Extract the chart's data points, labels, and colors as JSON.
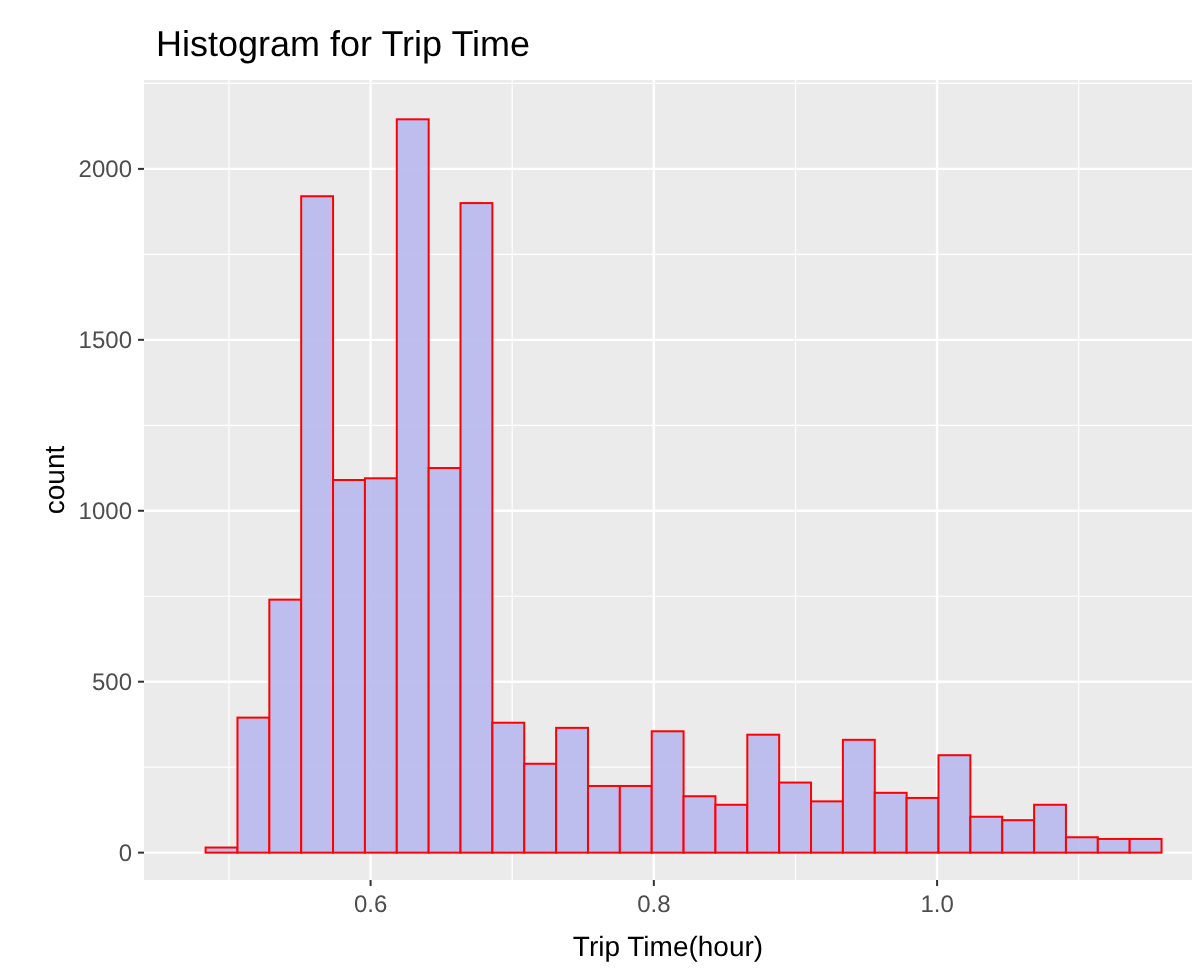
{
  "chart_data": {
    "type": "histogram",
    "title": "Histogram for Trip Time",
    "xlabel": "Trip Time(hour)",
    "ylabel": "count",
    "bins": [
      0.4835,
      0.506,
      0.5285,
      0.551,
      0.5735,
      0.596,
      0.6185,
      0.641,
      0.6635,
      0.686,
      0.7085,
      0.731,
      0.7535,
      0.776,
      0.7985,
      0.821,
      0.8435,
      0.866,
      0.8885,
      0.911,
      0.9335,
      0.956,
      0.9785,
      1.001,
      1.0235,
      1.046,
      1.0685,
      1.091,
      1.1135,
      1.136,
      1.1585
    ],
    "values": [
      15,
      395,
      740,
      1920,
      1090,
      1095,
      2145,
      1125,
      1900,
      380,
      260,
      365,
      195,
      195,
      355,
      165,
      140,
      345,
      205,
      150,
      330,
      175,
      160,
      285,
      105,
      95,
      140,
      45,
      40,
      40
    ],
    "color": "#bcbcee",
    "xlim": [
      0.44,
      1.18
    ],
    "xticks": [
      {
        "value": 0.6,
        "label": "0.6"
      },
      {
        "value": 0.8,
        "label": "0.8"
      },
      {
        "value": 1.0,
        "label": "1.0"
      }
    ],
    "ylim": [
      -80,
      2260
    ],
    "yticks": [
      0,
      500,
      1000,
      1500,
      2000
    ],
    "grid": true
  }
}
